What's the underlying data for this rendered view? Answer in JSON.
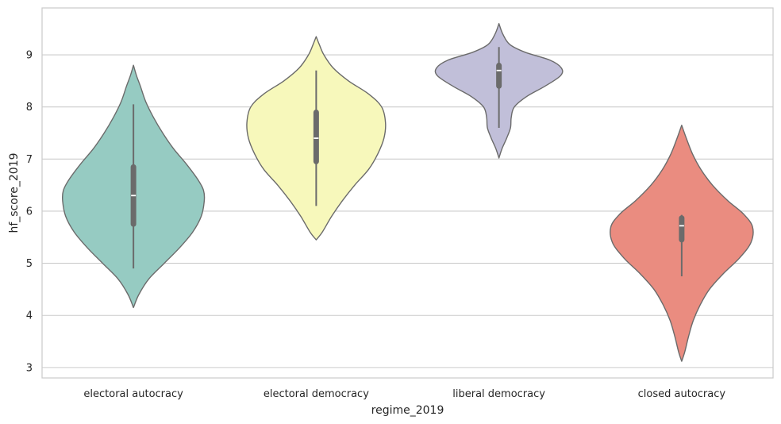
{
  "chart_data": {
    "type": "violin",
    "xlabel": "regime_2019",
    "ylabel": "hf_score_2019",
    "ylim": [
      2.8,
      9.9
    ],
    "yticks": [
      "3",
      "4",
      "5",
      "6",
      "7",
      "8",
      "9"
    ],
    "grid": true,
    "categories": [
      "electoral autocracy",
      "electoral democracy",
      "liberal democracy",
      "closed autocracy"
    ],
    "colors": [
      "#96cbc2",
      "#f7f8bb",
      "#c1bfd9",
      "#ea8c80"
    ],
    "violins": [
      {
        "category": "electoral autocracy",
        "median": 6.3,
        "q1": 5.7,
        "q3": 6.9,
        "whisker_low": 4.9,
        "whisker_high": 8.05,
        "density": [
          [
            4.15,
            0.0
          ],
          [
            4.4,
            0.07
          ],
          [
            4.7,
            0.2
          ],
          [
            5.0,
            0.4
          ],
          [
            5.3,
            0.6
          ],
          [
            5.6,
            0.77
          ],
          [
            5.9,
            0.88
          ],
          [
            6.2,
            0.92
          ],
          [
            6.4,
            0.91
          ],
          [
            6.6,
            0.84
          ],
          [
            6.9,
            0.69
          ],
          [
            7.2,
            0.52
          ],
          [
            7.5,
            0.38
          ],
          [
            7.8,
            0.26
          ],
          [
            8.1,
            0.16
          ],
          [
            8.4,
            0.09
          ],
          [
            8.6,
            0.04
          ],
          [
            8.8,
            0.0
          ]
        ]
      },
      {
        "category": "electoral democracy",
        "median": 7.4,
        "q1": 6.9,
        "q3": 7.95,
        "whisker_low": 6.1,
        "whisker_high": 8.7,
        "density": [
          [
            5.45,
            0.0
          ],
          [
            5.6,
            0.08
          ],
          [
            5.9,
            0.2
          ],
          [
            6.2,
            0.34
          ],
          [
            6.5,
            0.5
          ],
          [
            6.8,
            0.68
          ],
          [
            7.1,
            0.8
          ],
          [
            7.4,
            0.88
          ],
          [
            7.7,
            0.9
          ],
          [
            8.0,
            0.85
          ],
          [
            8.25,
            0.68
          ],
          [
            8.5,
            0.42
          ],
          [
            8.75,
            0.22
          ],
          [
            9.0,
            0.1
          ],
          [
            9.2,
            0.04
          ],
          [
            9.35,
            0.0
          ]
        ]
      },
      {
        "category": "liberal democracy",
        "median": 8.7,
        "q1": 8.35,
        "q3": 8.85,
        "whisker_low": 7.6,
        "whisker_high": 9.15,
        "density": [
          [
            7.02,
            0.0
          ],
          [
            7.2,
            0.04
          ],
          [
            7.4,
            0.1
          ],
          [
            7.6,
            0.15
          ],
          [
            7.8,
            0.16
          ],
          [
            8.0,
            0.2
          ],
          [
            8.2,
            0.36
          ],
          [
            8.4,
            0.6
          ],
          [
            8.6,
            0.8
          ],
          [
            8.75,
            0.81
          ],
          [
            8.9,
            0.66
          ],
          [
            9.05,
            0.34
          ],
          [
            9.2,
            0.14
          ],
          [
            9.4,
            0.05
          ],
          [
            9.6,
            0.0
          ]
        ]
      },
      {
        "category": "closed autocracy",
        "median": 5.72,
        "q1": 5.4,
        "q3": 5.92,
        "whisker_low": 4.75,
        "whisker_high": 5.93,
        "density": [
          [
            3.12,
            0.0
          ],
          [
            3.3,
            0.04
          ],
          [
            3.6,
            0.09
          ],
          [
            3.9,
            0.15
          ],
          [
            4.2,
            0.24
          ],
          [
            4.5,
            0.36
          ],
          [
            4.8,
            0.54
          ],
          [
            5.1,
            0.75
          ],
          [
            5.4,
            0.9
          ],
          [
            5.7,
            0.92
          ],
          [
            5.95,
            0.8
          ],
          [
            6.2,
            0.6
          ],
          [
            6.5,
            0.4
          ],
          [
            6.8,
            0.25
          ],
          [
            7.1,
            0.14
          ],
          [
            7.4,
            0.06
          ],
          [
            7.65,
            0.0
          ]
        ]
      }
    ]
  }
}
